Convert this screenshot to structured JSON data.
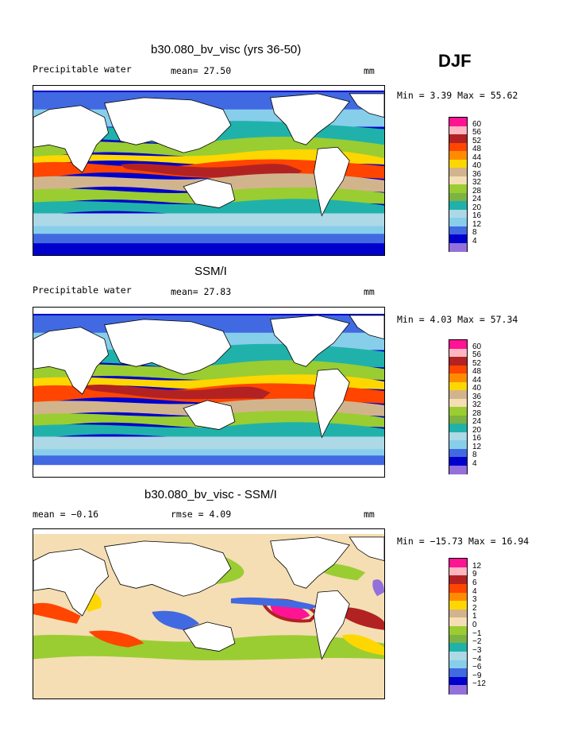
{
  "season": "DJF",
  "panels": [
    {
      "title": "b30.080_bv_visc (yrs 36-50)",
      "left_label": "Precipitable water",
      "mean_label": "mean=  27.50",
      "units": "mm",
      "minmax": "Min =   3.39 Max =  55.62",
      "legend_labels": [
        "60",
        "56",
        "52",
        "48",
        "44",
        "40",
        "36",
        "32",
        "28",
        "24",
        "20",
        "16",
        "12",
        "8",
        "4"
      ],
      "legend_colors": [
        "#ff1493",
        "#ffb6c1",
        "#b22222",
        "#ff4500",
        "#ff8c00",
        "#ffd700",
        "#d2b48c",
        "#f5deb3",
        "#9acd32",
        "#7cb342",
        "#20b2aa",
        "#add8e6",
        "#87ceeb",
        "#4169e1",
        "#0000cd",
        "#9370db"
      ]
    },
    {
      "title": "SSM/I",
      "left_label": "Precipitable water",
      "mean_label": "mean=  27.83",
      "units": "mm",
      "minmax": "Min =   4.03 Max =  57.34",
      "legend_labels": [
        "60",
        "56",
        "52",
        "48",
        "44",
        "40",
        "36",
        "32",
        "28",
        "24",
        "20",
        "16",
        "12",
        "8",
        "4"
      ],
      "legend_colors": [
        "#ff1493",
        "#ffb6c1",
        "#b22222",
        "#ff4500",
        "#ff8c00",
        "#ffd700",
        "#d2b48c",
        "#f5deb3",
        "#9acd32",
        "#7cb342",
        "#20b2aa",
        "#add8e6",
        "#87ceeb",
        "#4169e1",
        "#0000cd",
        "#9370db"
      ]
    },
    {
      "title": "b30.080_bv_visc - SSM/I",
      "left_label": "mean =  −0.16",
      "mean_label": "rmse =   4.09",
      "units": "mm",
      "minmax": "Min = −15.73 Max =  16.94",
      "legend_labels": [
        "12",
        "9",
        "6",
        "4",
        "3",
        "2",
        "1",
        "0",
        "−1",
        "−2",
        "−3",
        "−4",
        "−6",
        "−9",
        "−12"
      ],
      "legend_colors": [
        "#ff1493",
        "#ffb6c1",
        "#b22222",
        "#ff4500",
        "#ff8c00",
        "#ffd700",
        "#d2b48c",
        "#f5deb3",
        "#9acd32",
        "#7cb342",
        "#20b2aa",
        "#add8e6",
        "#87ceeb",
        "#4169e1",
        "#0000cd",
        "#9370db"
      ]
    }
  ]
}
